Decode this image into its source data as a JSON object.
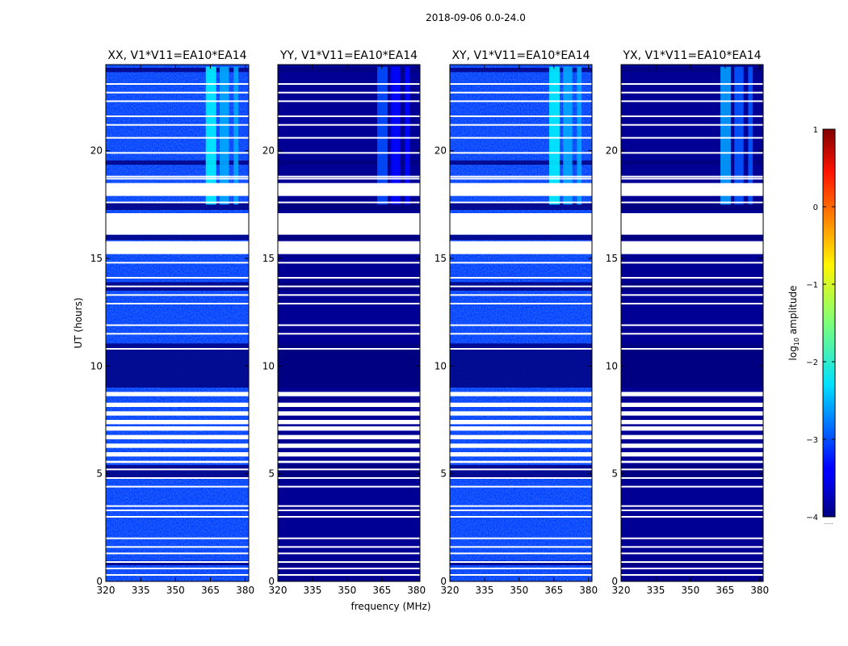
{
  "suptitle": "2018-09-06 0.0-24.0",
  "colorbar": {
    "label_prefix": "log",
    "label_sub": "10",
    "label_suffix": " amplitude",
    "ticks": [
      {
        "value": 1,
        "label": "1"
      },
      {
        "value": 0,
        "label": "0"
      },
      {
        "value": -1,
        "label": "−1"
      },
      {
        "value": -2,
        "label": "−2"
      },
      {
        "value": -3,
        "label": "−3"
      },
      {
        "value": -4,
        "label": "−4"
      }
    ],
    "range": [
      -4,
      1
    ],
    "colormap": "jet",
    "extra_label": "......"
  },
  "chart_data": {
    "type": "heatmap",
    "xlabel": "frequency (MHz)",
    "ylabel": "UT (hours)",
    "xlim": [
      320,
      381.5
    ],
    "ylim": [
      0,
      24
    ],
    "xticks": [
      320,
      335,
      350,
      365,
      380
    ],
    "yticks": [
      0,
      5,
      10,
      15,
      20
    ],
    "panels": [
      {
        "title": "XX, V1*V11=EA10*EA14",
        "level": -3.05,
        "rfi_level": -2.2
      },
      {
        "title": "YY, V1*V11=EA10*EA14",
        "level": -3.9,
        "rfi_level": -3.0
      },
      {
        "title": "XY, V1*V11=EA10*EA14",
        "level": -3.05,
        "rfi_level": -2.2
      },
      {
        "title": "YX, V1*V11=EA10*EA14",
        "level": -3.9,
        "rfi_level": -2.6
      }
    ],
    "flagged_ut_intervals": [
      [
        17.9,
        18.5
      ],
      [
        16.1,
        17.1
      ],
      [
        15.2,
        15.8
      ],
      [
        8.6,
        8.8
      ],
      [
        8.1,
        8.3
      ],
      [
        7.7,
        7.9
      ],
      [
        7.3,
        7.5
      ],
      [
        7.0,
        7.2
      ],
      [
        6.6,
        6.8
      ],
      [
        6.2,
        6.4
      ],
      [
        5.8,
        6.0
      ],
      [
        5.5,
        5.6
      ]
    ],
    "flag_line_ut": [
      23.1,
      22.7,
      22.3,
      21.6,
      21.2,
      20.6,
      19.9,
      18.8,
      18.7,
      17.6,
      15.6,
      14.8,
      14.1,
      13.7,
      13.3,
      12.9,
      11.9,
      11.5,
      10.8,
      5.2,
      4.8,
      4.4,
      3.5,
      3.3,
      3.0,
      2.0,
      1.6,
      1.3,
      0.9,
      0.6,
      0.3
    ],
    "dark_ut_intervals": [
      [
        23.65,
        23.85
      ],
      [
        19.35,
        19.55
      ],
      [
        17.25,
        17.6
      ],
      [
        15.85,
        16.1
      ],
      [
        13.5,
        13.9
      ],
      [
        9.0,
        11.05
      ],
      [
        4.8,
        5.4
      ],
      [
        0.75,
        0.95
      ]
    ],
    "rfi_bands_mhz": [
      [
        363,
        367.5
      ],
      [
        369,
        373
      ],
      [
        375,
        377
      ]
    ],
    "rfi_ut_range": [
      17.5,
      23.9
    ]
  }
}
